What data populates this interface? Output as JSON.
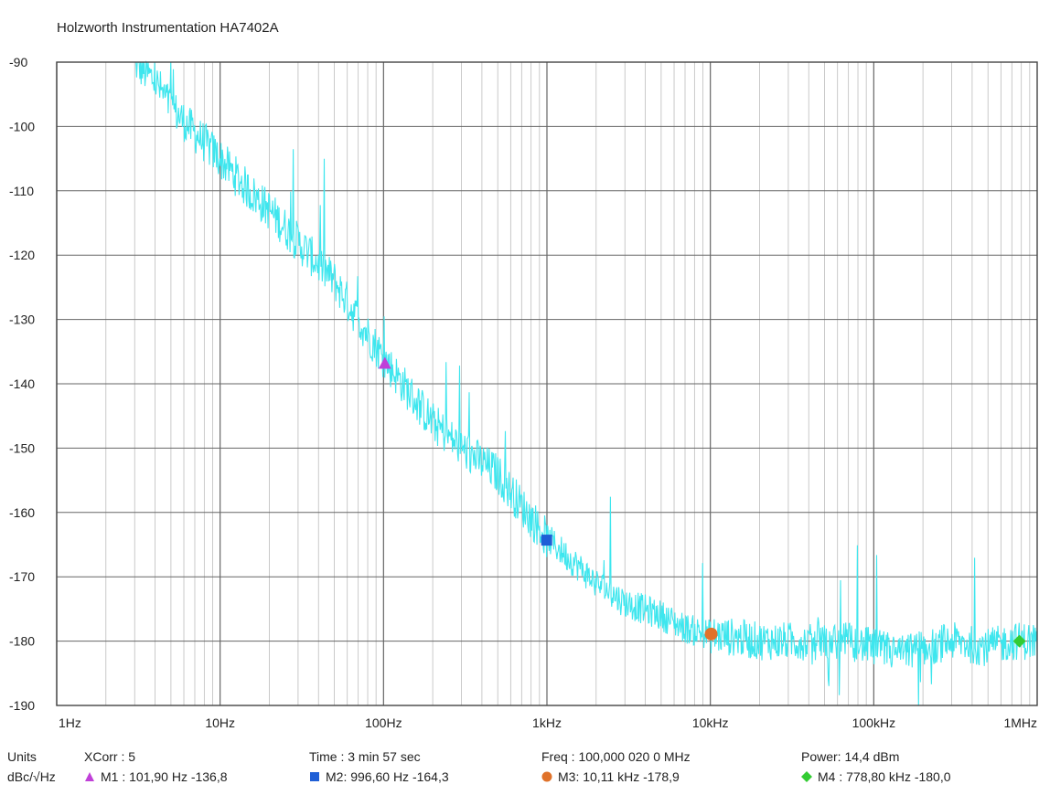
{
  "title": "Holzworth Instrumentation HA7402A",
  "chart_data": {
    "type": "line",
    "title": "Holzworth Instrumentation HA7402A",
    "xscale": "log",
    "xlim": [
      1,
      1000000
    ],
    "ylim": [
      -190,
      -90
    ],
    "x_tick_labels": [
      "1Hz",
      "10Hz",
      "100Hz",
      "1kHz",
      "10kHz",
      "100kHz",
      "1MHz"
    ],
    "x_tick_values": [
      1,
      10,
      100,
      1000,
      10000,
      100000,
      1000000
    ],
    "y_ticks": [
      -90,
      -100,
      -110,
      -120,
      -130,
      -140,
      -150,
      -160,
      -170,
      -180,
      -190
    ],
    "grid": true,
    "series": [
      {
        "color": "#3ee6ee",
        "x": [
          3,
          4,
          5,
          7,
          10,
          15,
          20,
          30,
          50,
          70,
          100,
          150,
          200,
          300,
          500,
          700,
          1000,
          1500,
          2000,
          3000,
          5000,
          7000,
          10000,
          15000,
          20000,
          30000,
          50000,
          70000,
          100000,
          150000,
          200000,
          300000,
          500000,
          700000,
          1000000
        ],
        "y": [
          -90,
          -93,
          -97,
          -101,
          -105,
          -110,
          -113,
          -118,
          -124,
          -130,
          -136,
          -142,
          -146,
          -150,
          -154,
          -159,
          -164,
          -168,
          -171,
          -174,
          -176,
          -178,
          -179,
          -179.5,
          -180,
          -180,
          -180,
          -180,
          -181,
          -182,
          -181,
          -180,
          -181,
          -180,
          -180
        ]
      }
    ],
    "markers": [
      {
        "label": "M1",
        "freq": 101.9,
        "value": -136.8,
        "shape": "triangle",
        "color": "#c040d8"
      },
      {
        "label": "M2",
        "freq": 996.6,
        "value": -164.3,
        "shape": "square",
        "color": "#1f5fd6"
      },
      {
        "label": "M3",
        "freq": 10110,
        "value": -178.9,
        "shape": "circle",
        "color": "#e0722a"
      },
      {
        "label": "M4",
        "freq": 778800,
        "value": -180.0,
        "shape": "diamond",
        "color": "#33cc33"
      }
    ]
  },
  "info": {
    "units_label": "Units",
    "units_value": "dBc/√Hz",
    "xcorr": "XCorr : 5",
    "time": "Time : 3 min 57 sec",
    "freq": "Freq : 100,000 020 0 MHz",
    "power": "Power: 14,4 dBm",
    "m1": "M1  : 101,90 Hz  -136,8",
    "m2": "M2: 996,60 Hz  -164,3",
    "m3": "M3: 10,11 kHz  -178,9",
    "m4": "M4 : 778,80 kHz  -180,0"
  }
}
